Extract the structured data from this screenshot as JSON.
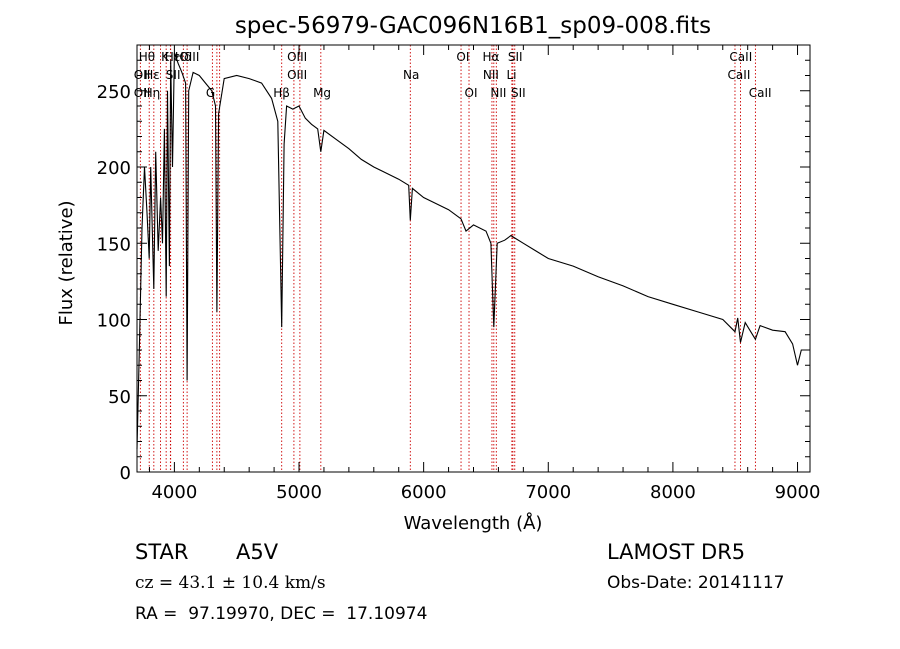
{
  "chart_data": {
    "type": "line",
    "title": "spec-56979-GAC096N16B1_sp09-008.fits",
    "xlabel": "Wavelength (Å)",
    "ylabel": "Flux (relative)",
    "xlim": [
      3700,
      9100
    ],
    "ylim": [
      0,
      280
    ],
    "x_ticks": [
      4000,
      5000,
      6000,
      7000,
      8000,
      9000
    ],
    "y_ticks": [
      0,
      50,
      100,
      150,
      200,
      250
    ],
    "grid": false,
    "line_color": "#000000",
    "marker_color": "#cc0000",
    "series": [
      {
        "x": [
          3700,
          3720,
          3740,
          3760,
          3780,
          3798,
          3810,
          3835,
          3850,
          3870,
          3889,
          3905,
          3920,
          3934,
          3945,
          3960,
          3970,
          3985,
          4000,
          4030,
          4060,
          4090,
          4102,
          4115,
          4150,
          4200,
          4250,
          4300,
          4330,
          4341,
          4355,
          4400,
          4500,
          4600,
          4700,
          4780,
          4830,
          4861,
          4880,
          4900,
          4950,
          5000,
          5050,
          5100,
          5150,
          5175,
          5200,
          5300,
          5400,
          5500,
          5600,
          5700,
          5800,
          5880,
          5893,
          5910,
          6000,
          6100,
          6200,
          6300,
          6340,
          6400,
          6500,
          6540,
          6563,
          6590,
          6650,
          6700,
          6800,
          6900,
          7000,
          7200,
          7400,
          7600,
          7800,
          8000,
          8200,
          8400,
          8498,
          8520,
          8542,
          8580,
          8662,
          8700,
          8800,
          8900,
          8960,
          9000,
          9030,
          9050,
          9080
        ],
        "y": [
          15,
          85,
          160,
          200,
          170,
          140,
          200,
          120,
          210,
          145,
          180,
          150,
          225,
          115,
          250,
          135,
          270,
          200,
          275,
          268,
          262,
          255,
          60,
          250,
          262,
          260,
          255,
          250,
          240,
          105,
          235,
          258,
          260,
          258,
          255,
          245,
          230,
          95,
          215,
          240,
          238,
          240,
          232,
          228,
          225,
          210,
          224,
          218,
          212,
          205,
          200,
          196,
          192,
          188,
          165,
          186,
          180,
          176,
          172,
          166,
          158,
          162,
          158,
          150,
          95,
          150,
          152,
          155,
          150,
          145,
          140,
          135,
          128,
          122,
          115,
          110,
          105,
          100,
          92,
          101,
          85,
          98,
          87,
          96,
          93,
          92,
          84,
          70,
          80,
          80,
          80
        ]
      }
    ],
    "lines": [
      {
        "name": "Hθ",
        "wavelength": 3798
      },
      {
        "name": "OII",
        "wavelength": 3727
      },
      {
        "name": "Hη",
        "wavelength": 3835
      },
      {
        "name": "Hζ",
        "wavelength": 3889
      },
      {
        "name": "K",
        "wavelength": 3934
      },
      {
        "name": "H",
        "wavelength": 3968
      },
      {
        "name": "Hε",
        "wavelength": 3970
      },
      {
        "name": "Hδ",
        "wavelength": 4102
      },
      {
        "name": "SII",
        "wavelength": 4072
      },
      {
        "name": "G",
        "wavelength": 4305
      },
      {
        "name": "Hγ",
        "wavelength": 4341
      },
      {
        "name": "OIII",
        "wavelength": 4363
      },
      {
        "name": "Hβ",
        "wavelength": 4861
      },
      {
        "name": "OIII",
        "wavelength": 4959
      },
      {
        "name": "OIII",
        "wavelength": 5007
      },
      {
        "name": "Mg",
        "wavelength": 5175
      },
      {
        "name": "Na",
        "wavelength": 5893
      },
      {
        "name": "OI",
        "wavelength": 6300
      },
      {
        "name": "OI",
        "wavelength": 6364
      },
      {
        "name": "NII",
        "wavelength": 6548
      },
      {
        "name": "Hα",
        "wavelength": 6563
      },
      {
        "name": "NII",
        "wavelength": 6583
      },
      {
        "name": "Li",
        "wavelength": 6708
      },
      {
        "name": "SII",
        "wavelength": 6716
      },
      {
        "name": "SII",
        "wavelength": 6731
      },
      {
        "name": "CaII",
        "wavelength": 8498
      },
      {
        "name": "CaII",
        "wavelength": 8542
      },
      {
        "name": "CaII",
        "wavelength": 8662
      }
    ],
    "line_labels": [
      {
        "text": "Hθ",
        "wavelength": 3780,
        "row": 0
      },
      {
        "text": "K",
        "wavelength": 3925,
        "row": 0
      },
      {
        "text": "Hε",
        "wavelength": 3985,
        "row": 0
      },
      {
        "text": "Hδ",
        "wavelength": 4070,
        "row": 0
      },
      {
        "text": "OIII",
        "wavelength": 4120,
        "row": 0
      },
      {
        "text": "OIII",
        "wavelength": 4985,
        "row": 0
      },
      {
        "text": "OI",
        "wavelength": 6315,
        "row": 0
      },
      {
        "text": "Hα",
        "wavelength": 6540,
        "row": 0
      },
      {
        "text": "SII",
        "wavelength": 6735,
        "row": 0
      },
      {
        "text": "CaII",
        "wavelength": 8545,
        "row": 0
      },
      {
        "text": "OII",
        "wavelength": 3740,
        "row": 1
      },
      {
        "text": "Hε",
        "wavelength": 3820,
        "row": 1
      },
      {
        "text": "SII",
        "wavelength": 3990,
        "row": 1
      },
      {
        "text": "OIII",
        "wavelength": 4985,
        "row": 1
      },
      {
        "text": "Na",
        "wavelength": 5900,
        "row": 1
      },
      {
        "text": "NII",
        "wavelength": 6540,
        "row": 1
      },
      {
        "text": "Li",
        "wavelength": 6705,
        "row": 1
      },
      {
        "text": "CaII",
        "wavelength": 8530,
        "row": 1
      },
      {
        "text": "OII",
        "wavelength": 3740,
        "row": 2
      },
      {
        "text": "Hη",
        "wavelength": 3820,
        "row": 2
      },
      {
        "text": "G",
        "wavelength": 4290,
        "row": 2
      },
      {
        "text": "Hβ",
        "wavelength": 4860,
        "row": 2
      },
      {
        "text": "Mg",
        "wavelength": 5185,
        "row": 2
      },
      {
        "text": "OI",
        "wavelength": 6380,
        "row": 2
      },
      {
        "text": "NII",
        "wavelength": 6600,
        "row": 2
      },
      {
        "text": "SII",
        "wavelength": 6760,
        "row": 2
      },
      {
        "text": "CaII",
        "wavelength": 8700,
        "row": 2
      }
    ]
  },
  "info": {
    "object_type": "STAR",
    "subclass": "A5V",
    "survey": "LAMOST DR5",
    "cz": "cz = 43.1 ± 10.4 km/s",
    "obs_date": "Obs-Date: 20141117",
    "coords": "RA =  97.19970, DEC =  17.10974"
  }
}
